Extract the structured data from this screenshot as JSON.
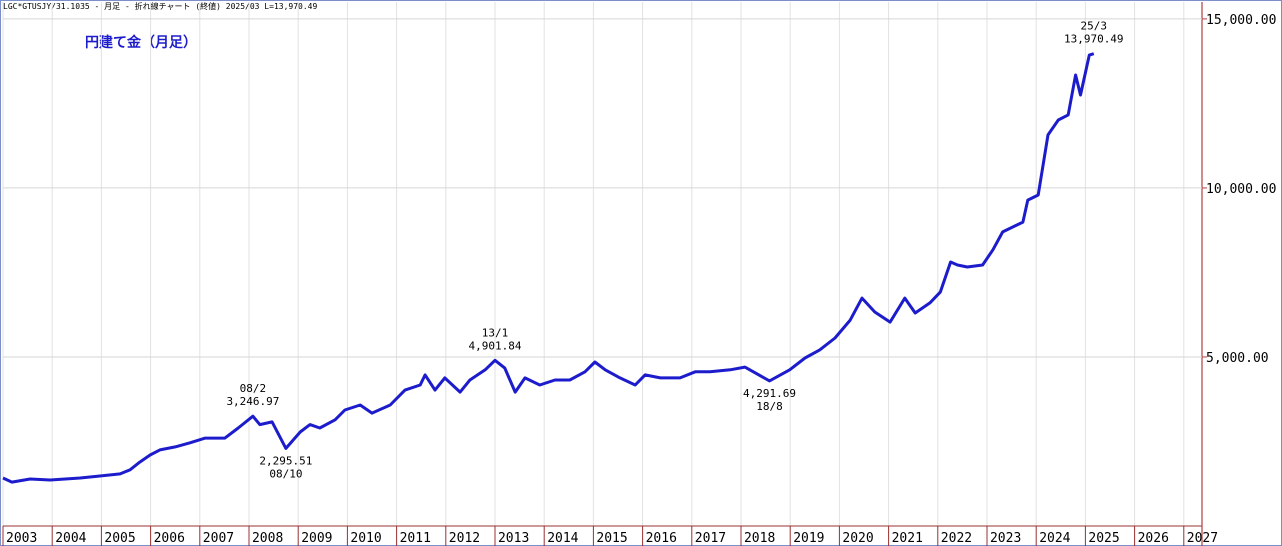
{
  "chart_data": {
    "type": "line",
    "header": "LGC*GTUSJY/31.1035 - 月足 - 折れ線チャート (終値)  2025/03 L=13,970.49",
    "title": "円建て金（月足）",
    "color": "#1c1ccc",
    "x": [
      2003.0,
      2003.18,
      2003.55,
      2003.96,
      2004.57,
      2004.97,
      2005.38,
      2005.58,
      2005.78,
      2005.99,
      2006.19,
      2006.5,
      2006.8,
      2007.11,
      2007.51,
      2007.78,
      2008.08,
      2008.22,
      2008.47,
      2008.75,
      2009.04,
      2009.24,
      2009.44,
      2009.75,
      2009.95,
      2010.26,
      2010.5,
      2010.87,
      2011.17,
      2011.48,
      2011.58,
      2011.78,
      2011.98,
      2012.29,
      2012.49,
      2012.8,
      2013.0,
      2013.2,
      2013.41,
      2013.61,
      2013.91,
      2014.22,
      2014.52,
      2014.83,
      2015.03,
      2015.24,
      2015.54,
      2015.85,
      2016.05,
      2016.36,
      2016.76,
      2017.07,
      2017.37,
      2017.78,
      2018.08,
      2018.58,
      2018.99,
      2019.3,
      2019.6,
      2019.91,
      2020.22,
      2020.46,
      2020.72,
      2021.03,
      2021.33,
      2021.54,
      2021.84,
      2022.05,
      2022.26,
      2022.4,
      2022.6,
      2022.91,
      2023.12,
      2023.32,
      2023.73,
      2023.83,
      2024.04,
      2024.24,
      2024.45,
      2024.65,
      2024.8,
      2024.9,
      2025.08,
      2025.17
    ],
    "values": [
      1420,
      1300,
      1390,
      1360,
      1420,
      1480,
      1540,
      1660,
      1890,
      2100,
      2250,
      2340,
      2460,
      2600,
      2600,
      2900,
      3246.97,
      3000,
      3080,
      2295.51,
      2780,
      3000,
      2900,
      3140,
      3430,
      3580,
      3340,
      3580,
      4020,
      4170,
      4470,
      4020,
      4380,
      3960,
      4320,
      4620,
      4901.84,
      4670,
      3960,
      4380,
      4170,
      4320,
      4320,
      4560,
      4850,
      4620,
      4380,
      4170,
      4470,
      4380,
      4380,
      4560,
      4560,
      4620,
      4700,
      4291.69,
      4620,
      4970,
      5210,
      5560,
      6090,
      6740,
      6330,
      6030,
      6740,
      6300,
      6600,
      6920,
      7810,
      7720,
      7660,
      7720,
      8170,
      8700,
      8990,
      9640,
      9790,
      11570,
      12010,
      12160,
      13340,
      12750,
      13930,
      13970.49
    ],
    "value_labels": [
      null,
      null,
      null,
      null,
      null,
      null,
      null,
      null,
      null,
      null,
      null,
      null,
      null,
      null,
      null,
      null,
      "3,246.97",
      null,
      null,
      "2,295.51",
      null,
      null,
      null,
      null,
      null,
      null,
      null,
      null,
      null,
      null,
      null,
      null,
      null,
      null,
      null,
      null,
      "4,901.84",
      null,
      null,
      null,
      null,
      null,
      null,
      null,
      null,
      null,
      null,
      null,
      null,
      null,
      null,
      null,
      null,
      null,
      null,
      "4,291.69",
      null,
      null,
      null,
      null,
      null,
      null,
      null,
      null,
      null,
      null,
      null,
      null,
      null,
      null,
      null,
      null,
      null,
      null,
      null,
      null,
      null,
      null,
      null,
      null,
      null,
      null,
      null,
      "13,970.49"
    ],
    "date_labels": [
      null,
      null,
      null,
      null,
      null,
      null,
      null,
      null,
      null,
      null,
      null,
      null,
      null,
      null,
      null,
      null,
      "08/2",
      null,
      null,
      "08/10",
      null,
      null,
      null,
      null,
      null,
      null,
      null,
      null,
      null,
      null,
      null,
      null,
      null,
      null,
      null,
      null,
      "13/1",
      null,
      null,
      null,
      null,
      null,
      null,
      null,
      null,
      null,
      null,
      null,
      null,
      null,
      null,
      null,
      null,
      null,
      null,
      "18/8",
      null,
      null,
      null,
      null,
      null,
      null,
      null,
      null,
      null,
      null,
      null,
      null,
      null,
      null,
      null,
      null,
      null,
      null,
      null,
      null,
      null,
      null,
      null,
      null,
      null,
      null,
      null,
      "25/3"
    ],
    "xlim": [
      2003,
      2027.37
    ],
    "xticks": [
      2003,
      2004,
      2005,
      2006,
      2007,
      2008,
      2009,
      2010,
      2011,
      2012,
      2013,
      2014,
      2015,
      2016,
      2017,
      2018,
      2019,
      2020,
      2021,
      2022,
      2023,
      2024,
      2025,
      2026,
      2027
    ],
    "ylim": [
      0,
      15500
    ],
    "yticks": [
      {
        "value": 5000,
        "label": "5,000.00"
      },
      {
        "value": 10000,
        "label": "10,000.00"
      },
      {
        "value": 15000,
        "label": "15,000.00"
      }
    ],
    "grid": true
  }
}
